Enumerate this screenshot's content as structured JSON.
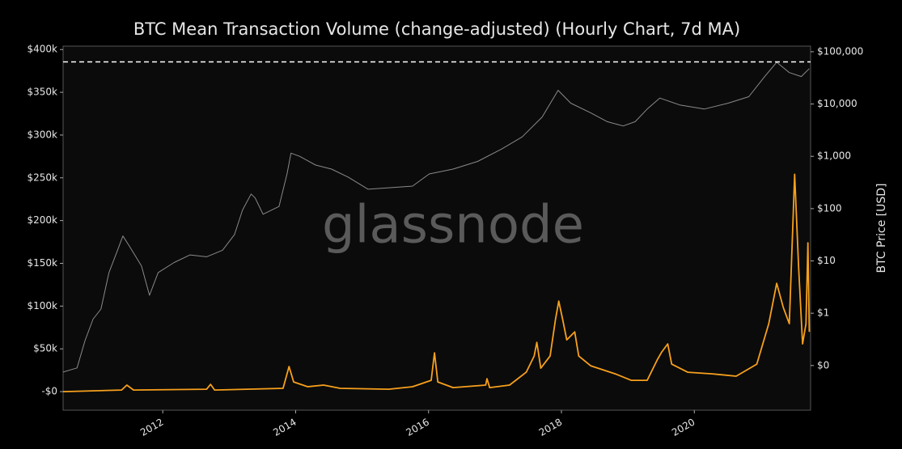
{
  "chart_data": {
    "type": "line",
    "title": "BTC Mean Transaction Volume (change-adjusted) (Hourly Chart, 7d MA)",
    "y2_label": "BTC Price [USD]",
    "watermark": "glassnode",
    "xlim": [
      2010.5,
      2021.75
    ],
    "xticks": [
      2012,
      2014,
      2016,
      2018,
      2020
    ],
    "ylim": [
      -21700,
      404000
    ],
    "yticks": [
      {
        "value": 0,
        "label": "-$0"
      },
      {
        "value": 50000,
        "label": "$50k"
      },
      {
        "value": 100000,
        "label": "$100k"
      },
      {
        "value": 150000,
        "label": "$150k"
      },
      {
        "value": 200000,
        "label": "$200k"
      },
      {
        "value": 250000,
        "label": "$250k"
      },
      {
        "value": 300000,
        "label": "$300k"
      },
      {
        "value": 350000,
        "label": "$350k"
      },
      {
        "value": 400000,
        "label": "$400k"
      }
    ],
    "y2lim": [
      0.014,
      128000
    ],
    "y2log": true,
    "y2ticks": [
      {
        "value": 0.1,
        "label": "$0"
      },
      {
        "value": 1,
        "label": "$1"
      },
      {
        "value": 10,
        "label": "$10"
      },
      {
        "value": 100,
        "label": "$100"
      },
      {
        "value": 1000,
        "label": "$1,000"
      },
      {
        "value": 10000,
        "label": "$10,000"
      },
      {
        "value": 100000,
        "label": "$100,000"
      }
    ],
    "reference_line": {
      "value": 64000,
      "axis": "y2",
      "color": "#ffffff"
    },
    "series": [
      {
        "color": "#8a8a8a",
        "axis": "y2",
        "x": [
          2010.5,
          2010.71,
          2010.83,
          2010.95,
          2011.07,
          2011.19,
          2011.32,
          2011.4,
          2011.5,
          2011.68,
          2011.8,
          2011.93,
          2012.17,
          2012.41,
          2012.66,
          2012.9,
          2013.08,
          2013.2,
          2013.33,
          2013.39,
          2013.51,
          2013.75,
          2013.87,
          2013.93,
          2014.06,
          2014.3,
          2014.54,
          2014.79,
          2015.09,
          2015.4,
          2015.76,
          2016.01,
          2016.37,
          2016.74,
          2017.1,
          2017.41,
          2017.71,
          2017.95,
          2018.14,
          2018.44,
          2018.69,
          2018.93,
          2019.11,
          2019.29,
          2019.48,
          2019.78,
          2020.15,
          2020.51,
          2020.82,
          2021.06,
          2021.24,
          2021.43,
          2021.61,
          2021.73
        ],
        "values": [
          0.075,
          0.09,
          0.3,
          0.77,
          1.2,
          6,
          16,
          30,
          19,
          8,
          2.2,
          6,
          9.3,
          13,
          12,
          16,
          32,
          94,
          190,
          160,
          78,
          110,
          460,
          1150,
          1000,
          680,
          570,
          400,
          235,
          250,
          270,
          460,
          570,
          800,
          1380,
          2350,
          5650,
          18300,
          10400,
          6800,
          4600,
          3800,
          4600,
          8000,
          13000,
          9600,
          8000,
          10400,
          13800,
          33500,
          63000,
          40000,
          33500,
          47500
        ]
      },
      {
        "color": "#f7a01c",
        "axis": "y",
        "x": [
          2010.5,
          2011.38,
          2011.46,
          2011.56,
          2012.66,
          2012.72,
          2012.78,
          2013.81,
          2013.9,
          2013.97,
          2014.18,
          2014.42,
          2014.67,
          2015.4,
          2015.76,
          2016.04,
          2016.09,
          2016.14,
          2016.37,
          2016.86,
          2016.88,
          2016.92,
          2017.22,
          2017.47,
          2017.59,
          2017.63,
          2017.69,
          2017.83,
          2017.91,
          2017.96,
          2018.02,
          2018.08,
          2018.2,
          2018.26,
          2018.44,
          2018.81,
          2019.05,
          2019.29,
          2019.44,
          2019.51,
          2019.6,
          2019.66,
          2019.9,
          2020.27,
          2020.63,
          2020.94,
          2021.12,
          2021.24,
          2021.34,
          2021.43,
          2021.51,
          2021.57,
          2021.63,
          2021.68,
          2021.71,
          2021.73
        ],
        "values": [
          0,
          1900,
          7600,
          1900,
          2800,
          8500,
          1900,
          3800,
          29300,
          11300,
          5700,
          7600,
          3800,
          2800,
          5700,
          13200,
          45400,
          11300,
          4700,
          7600,
          15100,
          4700,
          7600,
          22700,
          41600,
          57600,
          27400,
          41600,
          84100,
          105800,
          84100,
          60500,
          69900,
          41600,
          30200,
          20800,
          13200,
          13200,
          36900,
          46300,
          55800,
          32100,
          22700,
          20800,
          18000,
          32100,
          79400,
          126600,
          98300,
          79400,
          254200,
          145500,
          55800,
          79400,
          173900,
          69900
        ]
      }
    ]
  }
}
